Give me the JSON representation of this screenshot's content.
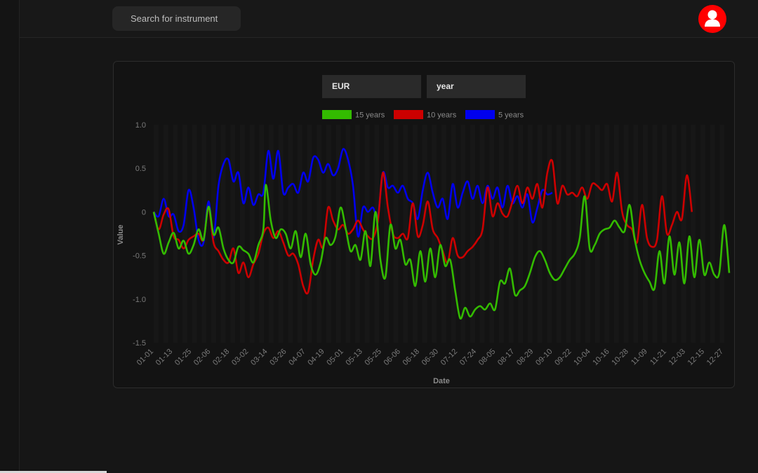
{
  "search": {
    "placeholder": "Search for instrument"
  },
  "user": {
    "icon": "user-icon",
    "color": "#ff0000"
  },
  "controls": {
    "currency": "EUR",
    "period": "year"
  },
  "chart_data": {
    "type": "line",
    "xlabel": "Date",
    "ylabel": "Value",
    "ylim": [
      -1.5,
      1.0
    ],
    "yticks": [
      1.0,
      0.5,
      0,
      -0.5,
      -1.0,
      -1.5
    ],
    "ytick_labels": [
      "1.0",
      "0.5",
      "0",
      "-0.5",
      "-1.0",
      "-1.5"
    ],
    "xticks": [
      "01-01",
      "01-13",
      "01-25",
      "02-06",
      "02-18",
      "03-02",
      "03-14",
      "03-26",
      "04-07",
      "04-19",
      "05-01",
      "05-13",
      "05-25",
      "06-06",
      "06-18",
      "06-30",
      "07-12",
      "07-24",
      "08-05",
      "08-17",
      "08-29",
      "09-10",
      "09-22",
      "10-04",
      "10-16",
      "10-28",
      "11-09",
      "11-21",
      "12-03",
      "12-15",
      "12-27"
    ],
    "legend_position": "top-center",
    "grid": true,
    "series": [
      {
        "name": "15 years",
        "color": "#33bb00",
        "points": [
          [
            0,
            0
          ],
          [
            2,
            -0.25
          ],
          [
            4,
            -0.48
          ],
          [
            6,
            -0.35
          ],
          [
            8,
            -0.24
          ],
          [
            10,
            -0.42
          ],
          [
            12,
            -0.33
          ],
          [
            14,
            -0.48
          ],
          [
            16,
            -0.38
          ],
          [
            18,
            -0.2
          ],
          [
            20,
            -0.32
          ],
          [
            22,
            0.06
          ],
          [
            24,
            -0.26
          ],
          [
            26,
            -0.18
          ],
          [
            28,
            -0.42
          ],
          [
            30,
            -0.55
          ],
          [
            32,
            -0.58
          ],
          [
            34,
            -0.4
          ],
          [
            36,
            -0.44
          ],
          [
            38,
            -0.48
          ],
          [
            40,
            -0.58
          ],
          [
            42,
            -0.38
          ],
          [
            44,
            -0.2
          ],
          [
            45,
            0.31
          ],
          [
            47,
            -0.1
          ],
          [
            49,
            -0.3
          ],
          [
            51,
            -0.2
          ],
          [
            53,
            -0.25
          ],
          [
            55,
            -0.42
          ],
          [
            57,
            -0.22
          ],
          [
            59,
            -0.52
          ],
          [
            61,
            -0.25
          ],
          [
            63,
            -0.6
          ],
          [
            65,
            -0.72
          ],
          [
            67,
            -0.58
          ],
          [
            69,
            -0.3
          ],
          [
            71,
            -0.38
          ],
          [
            73,
            -0.28
          ],
          [
            75,
            0.05
          ],
          [
            77,
            -0.18
          ],
          [
            79,
            -0.45
          ],
          [
            81,
            -0.38
          ],
          [
            83,
            -0.55
          ],
          [
            85,
            -0.22
          ],
          [
            87,
            -0.62
          ],
          [
            89,
            0.0
          ],
          [
            91,
            -0.55
          ],
          [
            93,
            -0.75
          ],
          [
            95,
            -0.15
          ],
          [
            97,
            -0.42
          ],
          [
            99,
            -0.32
          ],
          [
            101,
            -0.6
          ],
          [
            103,
            -0.55
          ],
          [
            105,
            -0.85
          ],
          [
            107,
            -0.45
          ],
          [
            109,
            -0.8
          ],
          [
            111,
            -0.42
          ],
          [
            113,
            -0.75
          ],
          [
            115,
            -0.38
          ],
          [
            117,
            -0.62
          ],
          [
            119,
            -0.55
          ],
          [
            121,
            -0.9
          ],
          [
            123,
            -1.22
          ],
          [
            125,
            -1.1
          ],
          [
            127,
            -1.2
          ],
          [
            129,
            -1.12
          ],
          [
            131,
            -1.08
          ],
          [
            133,
            -1.12
          ],
          [
            135,
            -1.05
          ],
          [
            137,
            -1.12
          ],
          [
            139,
            -0.8
          ],
          [
            141,
            -0.82
          ],
          [
            143,
            -0.65
          ],
          [
            145,
            -0.95
          ],
          [
            147,
            -0.9
          ],
          [
            149,
            -0.85
          ],
          [
            151,
            -0.7
          ],
          [
            153,
            -0.52
          ],
          [
            155,
            -0.45
          ],
          [
            157,
            -0.55
          ],
          [
            159,
            -0.7
          ],
          [
            161,
            -0.78
          ],
          [
            163,
            -0.75
          ],
          [
            165,
            -0.65
          ],
          [
            167,
            -0.55
          ],
          [
            169,
            -0.48
          ],
          [
            171,
            -0.3
          ],
          [
            173,
            0.18
          ],
          [
            175,
            -0.42
          ],
          [
            177,
            -0.38
          ],
          [
            179,
            -0.25
          ],
          [
            181,
            -0.2
          ],
          [
            183,
            -0.18
          ],
          [
            185,
            -0.1
          ],
          [
            187,
            -0.18
          ],
          [
            189,
            -0.22
          ],
          [
            191,
            0.08
          ],
          [
            193,
            -0.3
          ],
          [
            195,
            -0.55
          ],
          [
            197,
            -0.7
          ],
          [
            199,
            -0.8
          ],
          [
            201,
            -0.88
          ],
          [
            203,
            -0.45
          ],
          [
            205,
            -0.82
          ],
          [
            207,
            -0.28
          ],
          [
            209,
            -0.72
          ],
          [
            211,
            -0.35
          ],
          [
            213,
            -0.82
          ],
          [
            215,
            -0.28
          ],
          [
            217,
            -0.75
          ],
          [
            219,
            -0.32
          ],
          [
            221,
            -0.72
          ],
          [
            223,
            -0.58
          ],
          [
            225,
            -0.72
          ],
          [
            227,
            -0.7
          ],
          [
            229,
            -0.15
          ],
          [
            231,
            -0.7
          ]
        ]
      },
      {
        "name": "10 years",
        "color": "#cc0000",
        "points": [
          [
            0,
            0
          ],
          [
            2,
            -0.2
          ],
          [
            4,
            -0.03
          ],
          [
            6,
            0.03
          ],
          [
            8,
            -0.28
          ],
          [
            10,
            -0.32
          ],
          [
            12,
            -0.42
          ],
          [
            14,
            -0.32
          ],
          [
            16,
            -0.28
          ],
          [
            18,
            -0.25
          ],
          [
            20,
            -0.32
          ],
          [
            22,
            0.05
          ],
          [
            24,
            -0.35
          ],
          [
            26,
            -0.45
          ],
          [
            28,
            -0.55
          ],
          [
            30,
            -0.58
          ],
          [
            32,
            -0.42
          ],
          [
            34,
            -0.7
          ],
          [
            36,
            -0.58
          ],
          [
            38,
            -0.75
          ],
          [
            40,
            -0.6
          ],
          [
            42,
            -0.48
          ],
          [
            44,
            -0.25
          ],
          [
            46,
            -0.18
          ],
          [
            48,
            -0.3
          ],
          [
            50,
            -0.22
          ],
          [
            52,
            -0.35
          ],
          [
            54,
            -0.5
          ],
          [
            56,
            -0.48
          ],
          [
            58,
            -0.6
          ],
          [
            60,
            -0.85
          ],
          [
            62,
            -0.92
          ],
          [
            64,
            -0.55
          ],
          [
            66,
            -0.32
          ],
          [
            68,
            -0.4
          ],
          [
            70,
            0.05
          ],
          [
            72,
            -0.1
          ],
          [
            74,
            -0.2
          ],
          [
            76,
            -0.15
          ],
          [
            78,
            -0.25
          ],
          [
            80,
            -0.2
          ],
          [
            82,
            -0.1
          ],
          [
            84,
            -0.2
          ],
          [
            86,
            -0.28
          ],
          [
            88,
            -0.3
          ],
          [
            90,
            -0.1
          ],
          [
            92,
            0.45
          ],
          [
            94,
            0.05
          ],
          [
            96,
            -0.25
          ],
          [
            98,
            -0.3
          ],
          [
            100,
            -0.25
          ],
          [
            102,
            -0.3
          ],
          [
            104,
            0.1
          ],
          [
            106,
            -0.28
          ],
          [
            108,
            -0.15
          ],
          [
            110,
            0.12
          ],
          [
            112,
            -0.2
          ],
          [
            114,
            -0.3
          ],
          [
            116,
            -0.45
          ],
          [
            118,
            -0.58
          ],
          [
            120,
            -0.3
          ],
          [
            122,
            -0.5
          ],
          [
            124,
            -0.52
          ],
          [
            126,
            -0.45
          ],
          [
            128,
            -0.4
          ],
          [
            130,
            -0.32
          ],
          [
            132,
            -0.2
          ],
          [
            134,
            0.28
          ],
          [
            136,
            -0.05
          ],
          [
            138,
            0.1
          ],
          [
            140,
            -0.02
          ],
          [
            142,
            -0.05
          ],
          [
            144,
            0.12
          ],
          [
            146,
            0.3
          ],
          [
            148,
            0.1
          ],
          [
            150,
            0.28
          ],
          [
            152,
            0.15
          ],
          [
            154,
            0.32
          ],
          [
            156,
            0.05
          ],
          [
            158,
            0.45
          ],
          [
            160,
            0.58
          ],
          [
            162,
            0.1
          ],
          [
            164,
            0.3
          ],
          [
            166,
            0.2
          ],
          [
            168,
            0.22
          ],
          [
            170,
            0.18
          ],
          [
            172,
            0.28
          ],
          [
            174,
            0.15
          ],
          [
            176,
            0.32
          ],
          [
            178,
            0.3
          ],
          [
            180,
            0.25
          ],
          [
            182,
            0.32
          ],
          [
            184,
            0.12
          ],
          [
            186,
            0.45
          ],
          [
            188,
            0.0
          ],
          [
            190,
            -0.15
          ],
          [
            192,
            -0.2
          ],
          [
            194,
            -0.35
          ],
          [
            196,
            0.08
          ],
          [
            198,
            -0.3
          ],
          [
            200,
            -0.4
          ],
          [
            202,
            -0.32
          ],
          [
            204,
            0.18
          ],
          [
            206,
            -0.25
          ],
          [
            208,
            -0.15
          ],
          [
            210,
            0.0
          ],
          [
            212,
            -0.08
          ],
          [
            214,
            0.42
          ],
          [
            216,
            0.0
          ]
        ]
      },
      {
        "name": "5 years",
        "color": "#0000ee",
        "points": [
          [
            0,
            0
          ],
          [
            2,
            -0.05
          ],
          [
            4,
            0.15
          ],
          [
            6,
            -0.05
          ],
          [
            8,
            -0.03
          ],
          [
            10,
            -0.22
          ],
          [
            12,
            -0.15
          ],
          [
            14,
            0.25
          ],
          [
            16,
            0.05
          ],
          [
            18,
            -0.32
          ],
          [
            20,
            -0.35
          ],
          [
            22,
            0.12
          ],
          [
            24,
            -0.3
          ],
          [
            26,
            0.3
          ],
          [
            28,
            0.55
          ],
          [
            30,
            0.6
          ],
          [
            32,
            0.35
          ],
          [
            34,
            0.45
          ],
          [
            36,
            0.1
          ],
          [
            38,
            0.28
          ],
          [
            40,
            0.08
          ],
          [
            42,
            0.2
          ],
          [
            44,
            0.22
          ],
          [
            46,
            0.7
          ],
          [
            48,
            0.38
          ],
          [
            50,
            0.7
          ],
          [
            52,
            0.22
          ],
          [
            54,
            0.28
          ],
          [
            56,
            0.32
          ],
          [
            58,
            0.22
          ],
          [
            60,
            0.45
          ],
          [
            62,
            0.35
          ],
          [
            64,
            0.62
          ],
          [
            66,
            0.6
          ],
          [
            68,
            0.45
          ],
          [
            70,
            0.55
          ],
          [
            72,
            0.42
          ],
          [
            74,
            0.5
          ],
          [
            76,
            0.72
          ],
          [
            78,
            0.6
          ],
          [
            80,
            0.3
          ],
          [
            82,
            -0.28
          ],
          [
            84,
            0.05
          ],
          [
            86,
            0.0
          ],
          [
            88,
            0.05
          ],
          [
            90,
            -0.05
          ],
          [
            92,
            0.45
          ],
          [
            94,
            0.28
          ],
          [
            96,
            0.3
          ],
          [
            98,
            0.22
          ],
          [
            100,
            0.3
          ],
          [
            102,
            0.15
          ],
          [
            104,
            0.1
          ],
          [
            106,
            -0.08
          ],
          [
            108,
            0.25
          ],
          [
            110,
            0.45
          ],
          [
            112,
            0.22
          ],
          [
            114,
            0.05
          ],
          [
            116,
            0.15
          ],
          [
            118,
            -0.08
          ],
          [
            120,
            0.32
          ],
          [
            122,
            0.05
          ],
          [
            124,
            0.22
          ],
          [
            126,
            0.35
          ],
          [
            128,
            0.15
          ],
          [
            130,
            0.3
          ],
          [
            132,
            0.1
          ],
          [
            134,
            0.3
          ],
          [
            136,
            0.15
          ],
          [
            138,
            0.28
          ],
          [
            140,
            0.05
          ],
          [
            142,
            0.3
          ],
          [
            144,
            0.1
          ],
          [
            146,
            0.18
          ],
          [
            148,
            0.05
          ],
          [
            150,
            0.2
          ],
          [
            152,
            -0.12
          ],
          [
            154,
            0.05
          ],
          [
            156,
            0.25
          ],
          [
            158,
            0.2
          ],
          [
            160,
            0.22
          ]
        ]
      }
    ]
  }
}
